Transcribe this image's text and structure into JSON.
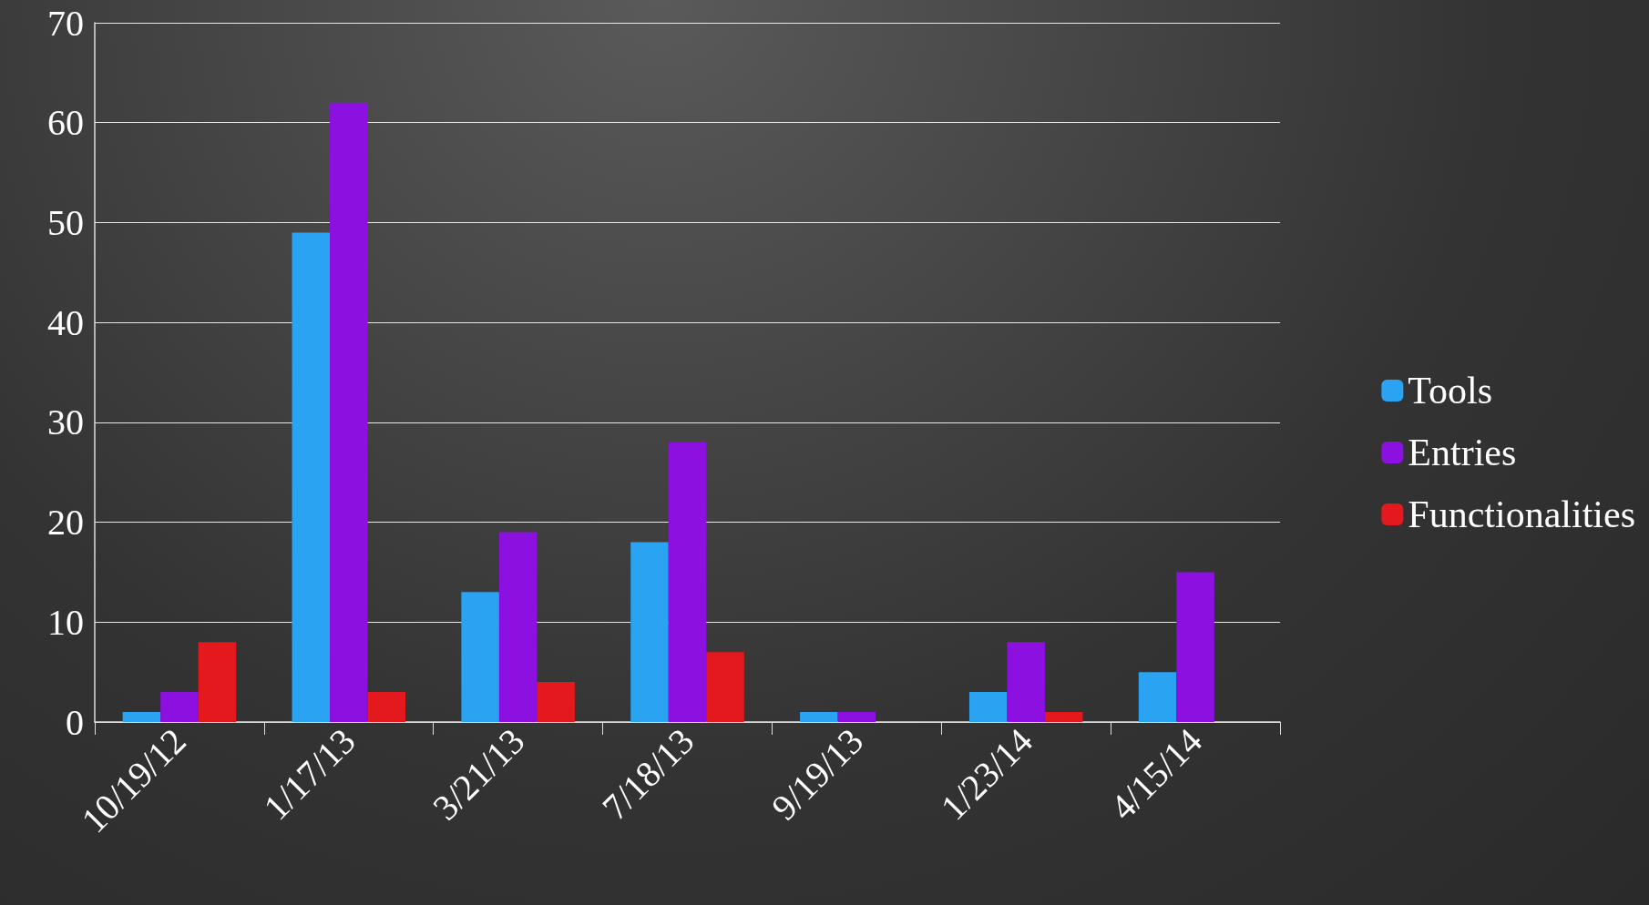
{
  "chart_data": {
    "type": "bar",
    "categories": [
      "10/19/12",
      "1/17/13",
      "3/21/13",
      "7/18/13",
      "9/19/13",
      "1/23/14",
      "4/15/14"
    ],
    "series": [
      {
        "name": "Tools",
        "color": "#2aa3f2",
        "values": [
          1,
          49,
          13,
          18,
          1,
          3,
          5
        ]
      },
      {
        "name": "Entries",
        "color": "#8c10e0",
        "values": [
          3,
          62,
          19,
          28,
          1,
          8,
          15
        ]
      },
      {
        "name": "Functionalities",
        "color": "#e4191e",
        "values": [
          8,
          3,
          4,
          7,
          0,
          1,
          0
        ]
      }
    ],
    "ylim": [
      0,
      70
    ],
    "yticks": [
      0,
      10,
      20,
      30,
      40,
      50,
      60,
      70
    ],
    "grid": "y",
    "legend": "right"
  }
}
